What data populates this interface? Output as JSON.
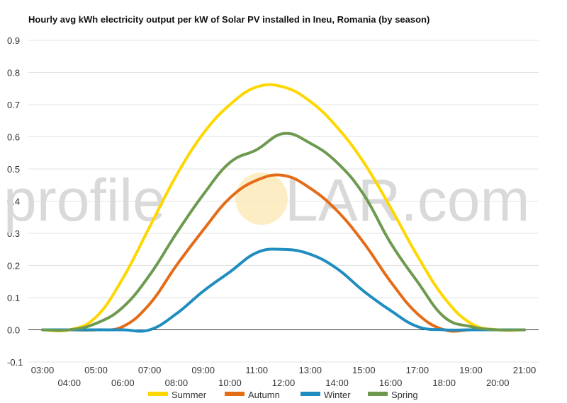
{
  "chart_data": {
    "type": "line",
    "title": "Hourly avg kWh electricity output per kW of Solar PV installed in Ineu, Romania (by season)",
    "xlabel": "",
    "ylabel": "",
    "x": [
      "03:00",
      "04:00",
      "05:00",
      "06:00",
      "07:00",
      "08:00",
      "09:00",
      "10:00",
      "11:00",
      "12:00",
      "13:00",
      "14:00",
      "15:00",
      "16:00",
      "17:00",
      "18:00",
      "19:00",
      "20:00",
      "21:00"
    ],
    "ylim": [
      -0.1,
      0.9
    ],
    "yticks": [
      "-0.1",
      "0.0",
      "0.1",
      "0.2",
      "0.3",
      "0.4",
      "0.5",
      "0.6",
      "0.7",
      "0.8",
      "0.9"
    ],
    "grid": true,
    "legend_position": "bottom",
    "series": [
      {
        "name": "Summer",
        "color": "#FFD700",
        "values": [
          0,
          0,
          0.04,
          0.16,
          0.32,
          0.48,
          0.61,
          0.7,
          0.755,
          0.755,
          0.71,
          0.63,
          0.52,
          0.38,
          0.23,
          0.1,
          0.02,
          0,
          0
        ]
      },
      {
        "name": "Autumn",
        "color": "#E46C17",
        "values": [
          0,
          0,
          0,
          0.01,
          0.08,
          0.2,
          0.31,
          0.41,
          0.465,
          0.48,
          0.44,
          0.37,
          0.27,
          0.15,
          0.05,
          0,
          0,
          0,
          0
        ]
      },
      {
        "name": "Winter",
        "color": "#1F8DBF",
        "values": [
          0,
          0,
          0,
          0,
          0,
          0.05,
          0.12,
          0.18,
          0.24,
          0.25,
          0.235,
          0.19,
          0.12,
          0.06,
          0.01,
          0,
          0,
          0,
          0
        ]
      },
      {
        "name": "Spring",
        "color": "#6E9A50",
        "values": [
          0,
          0,
          0.02,
          0.07,
          0.17,
          0.3,
          0.42,
          0.52,
          0.56,
          0.61,
          0.58,
          0.52,
          0.42,
          0.27,
          0.15,
          0.04,
          0.01,
          0,
          0
        ]
      }
    ]
  },
  "watermark": {
    "left": "profile",
    "right": "LAR.com"
  }
}
